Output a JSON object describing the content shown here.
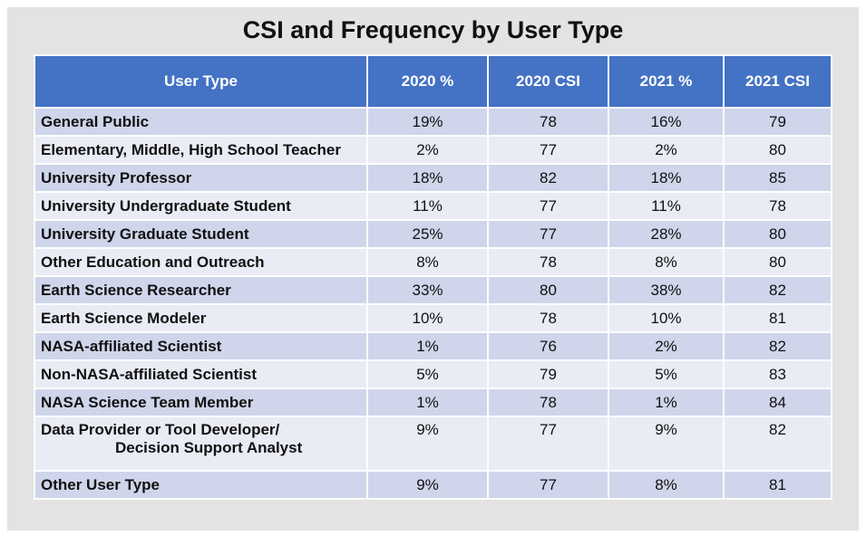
{
  "title": "CSI and Frequency by User Type",
  "chart_data": {
    "type": "table",
    "title": "CSI and Frequency by User Type",
    "columns": [
      "User Type",
      "2020 %",
      "2020 CSI",
      "2021 %",
      "2021 CSI"
    ],
    "rows": [
      {
        "user_type": "General Public",
        "pct_2020": "19%",
        "csi_2020": "78",
        "pct_2021": "16%",
        "csi_2021": "79"
      },
      {
        "user_type": "Elementary, Middle, High School Teacher",
        "pct_2020": "2%",
        "csi_2020": "77",
        "pct_2021": "2%",
        "csi_2021": "80"
      },
      {
        "user_type": "University Professor",
        "pct_2020": "18%",
        "csi_2020": "82",
        "pct_2021": "18%",
        "csi_2021": "85"
      },
      {
        "user_type": "University Undergraduate Student",
        "pct_2020": "11%",
        "csi_2020": "77",
        "pct_2021": "11%",
        "csi_2021": "78"
      },
      {
        "user_type": "University Graduate Student",
        "pct_2020": "25%",
        "csi_2020": "77",
        "pct_2021": "28%",
        "csi_2021": "80"
      },
      {
        "user_type": "Other Education and Outreach",
        "pct_2020": "8%",
        "csi_2020": "78",
        "pct_2021": "8%",
        "csi_2021": "80"
      },
      {
        "user_type": "Earth Science Researcher",
        "pct_2020": "33%",
        "csi_2020": "80",
        "pct_2021": "38%",
        "csi_2021": "82"
      },
      {
        "user_type": "Earth Science Modeler",
        "pct_2020": "10%",
        "csi_2020": "78",
        "pct_2021": "10%",
        "csi_2021": "81"
      },
      {
        "user_type": "NASA-affiliated Scientist",
        "pct_2020": "1%",
        "csi_2020": "76",
        "pct_2021": "2%",
        "csi_2021": "82"
      },
      {
        "user_type": "Non-NASA-affiliated Scientist",
        "pct_2020": "5%",
        "csi_2020": "79",
        "pct_2021": "5%",
        "csi_2021": "83"
      },
      {
        "user_type": "NASA Science Team Member",
        "pct_2020": "1%",
        "csi_2020": "78",
        "pct_2021": "1%",
        "csi_2021": "84"
      },
      {
        "user_type": "Data Provider or Tool Developer/",
        "user_type_line2": "Decision Support Analyst",
        "pct_2020": "9%",
        "csi_2020": "77",
        "pct_2021": "9%",
        "csi_2021": "82"
      },
      {
        "user_type": "Other User Type",
        "pct_2020": "9%",
        "csi_2020": "77",
        "pct_2021": "8%",
        "csi_2021": "81"
      }
    ]
  }
}
